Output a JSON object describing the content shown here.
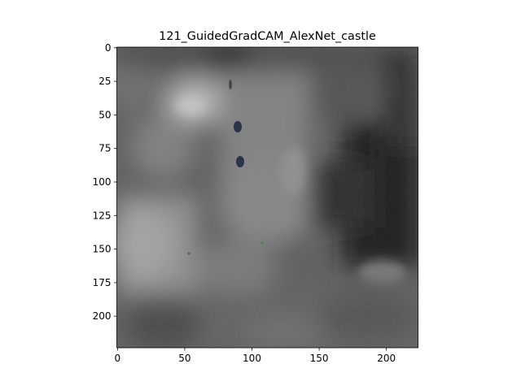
{
  "figure": {
    "title": "121_GuidedGradCAM_AlexNet_castle"
  },
  "axes": {
    "x_ticks": [
      0,
      50,
      100,
      150,
      200
    ],
    "y_ticks": [
      0,
      25,
      50,
      75,
      100,
      125,
      150,
      175,
      200
    ],
    "x_range": [
      0,
      224
    ],
    "y_range": [
      0,
      224
    ]
  },
  "image": {
    "description_colors": {
      "background": "#6e6e6e",
      "dark": "#0a0a0a",
      "light": "#b8b8b8"
    }
  }
}
